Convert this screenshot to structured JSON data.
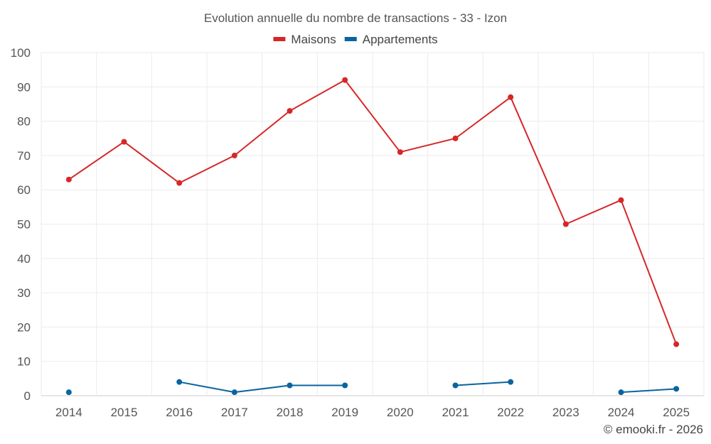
{
  "chart_data": {
    "type": "line",
    "title": "Evolution annuelle du nombre de transactions - 33 - Izon",
    "categories": [
      "2014",
      "2015",
      "2016",
      "2017",
      "2018",
      "2019",
      "2020",
      "2021",
      "2022",
      "2023",
      "2024",
      "2025"
    ],
    "series": [
      {
        "name": "Maisons",
        "color": "#d62728",
        "values": [
          63,
          74,
          62,
          70,
          83,
          92,
          71,
          75,
          87,
          50,
          57,
          15
        ]
      },
      {
        "name": "Appartements",
        "color": "#0a64a0",
        "values": [
          1,
          null,
          4,
          1,
          3,
          3,
          null,
          3,
          4,
          null,
          1,
          2
        ]
      }
    ],
    "ylim": [
      0,
      100
    ],
    "yticks": [
      0,
      10,
      20,
      30,
      40,
      50,
      60,
      70,
      80,
      90,
      100
    ],
    "xlabel": "",
    "ylabel": "",
    "grid": true,
    "legend_position": "top-center"
  },
  "credit": "© emooki.fr - 2026"
}
